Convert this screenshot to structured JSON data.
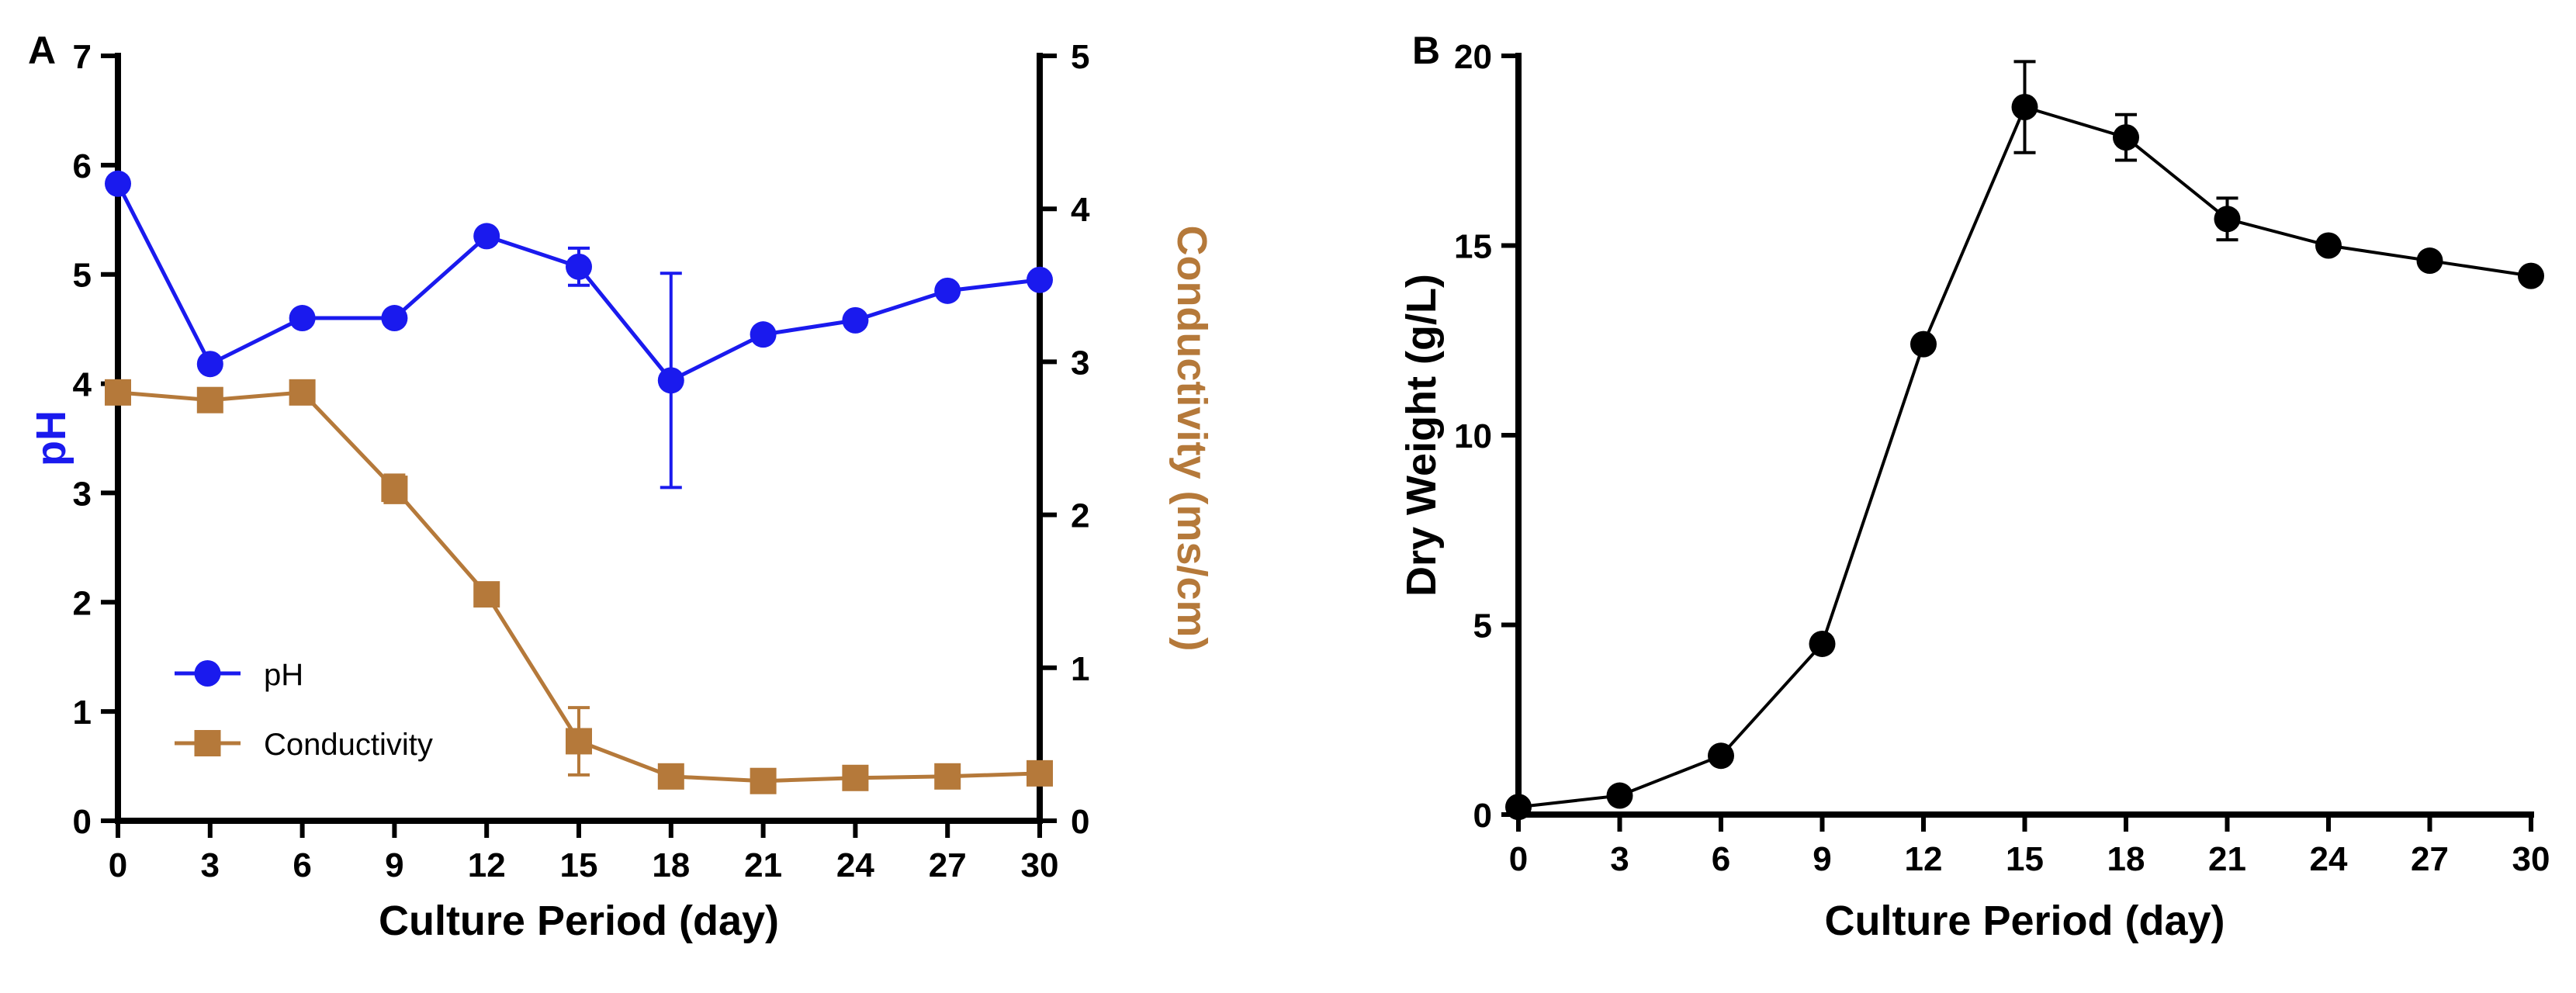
{
  "chart_data": [
    {
      "panel": "A",
      "type": "line",
      "x": [
        0,
        3,
        6,
        9,
        12,
        15,
        18,
        21,
        24,
        27,
        30
      ],
      "x_ticks": [
        "0",
        "3",
        "6",
        "9",
        "12",
        "15",
        "18",
        "21",
        "24",
        "27",
        "30"
      ],
      "xlabel": "Culture Period (day)",
      "xlim": [
        0,
        30
      ],
      "ylabel_left": "pH",
      "ylim_left": [
        0,
        7
      ],
      "y_ticks_left": [
        "0",
        "1",
        "2",
        "3",
        "4",
        "5",
        "6",
        "7"
      ],
      "ylabel_right": "Conductivity (ms/cm)",
      "ylim_right": [
        0,
        5
      ],
      "y_ticks_right": [
        "0",
        "1",
        "2",
        "3",
        "4",
        "5"
      ],
      "legend_position": "bottom-left",
      "series": [
        {
          "name": "pH",
          "axis": "left",
          "marker": "circle",
          "color": "#1a1aee",
          "values": [
            5.83,
            4.18,
            4.6,
            4.6,
            5.35,
            5.07,
            4.03,
            4.45,
            4.58,
            4.85,
            4.95
          ],
          "errors": [
            0,
            0,
            0,
            0,
            0,
            0.17,
            0.98,
            0,
            0,
            0,
            0
          ]
        },
        {
          "name": "Conductivity",
          "axis": "right",
          "marker": "square",
          "color": "#b5793a",
          "values": [
            2.8,
            2.75,
            2.8,
            2.17,
            1.48,
            0.52,
            0.29,
            0.26,
            0.28,
            0.29,
            0.31
          ],
          "errors": [
            0,
            0,
            0,
            0.09,
            0,
            0.22,
            0,
            0,
            0,
            0,
            0
          ]
        }
      ]
    },
    {
      "panel": "B",
      "type": "line",
      "x": [
        0,
        3,
        6,
        9,
        12,
        15,
        18,
        21,
        24,
        27,
        30
      ],
      "x_ticks": [
        "0",
        "3",
        "6",
        "9",
        "12",
        "15",
        "18",
        "21",
        "24",
        "27",
        "30"
      ],
      "xlabel": "Culture Period (day)",
      "xlim": [
        0,
        30
      ],
      "ylabel": "Dry Weight (g/L)",
      "ylim": [
        0,
        20
      ],
      "y_ticks": [
        "0",
        "5",
        "10",
        "15",
        "20"
      ],
      "series": [
        {
          "name": "Dry Weight",
          "marker": "circle",
          "color": "#000000",
          "values": [
            0.2,
            0.5,
            1.55,
            4.5,
            12.4,
            18.65,
            17.85,
            15.7,
            15.0,
            14.6,
            14.2
          ],
          "errors": [
            0,
            0,
            0,
            0,
            0,
            1.2,
            0.6,
            0.55,
            0,
            0,
            0
          ]
        }
      ]
    }
  ]
}
